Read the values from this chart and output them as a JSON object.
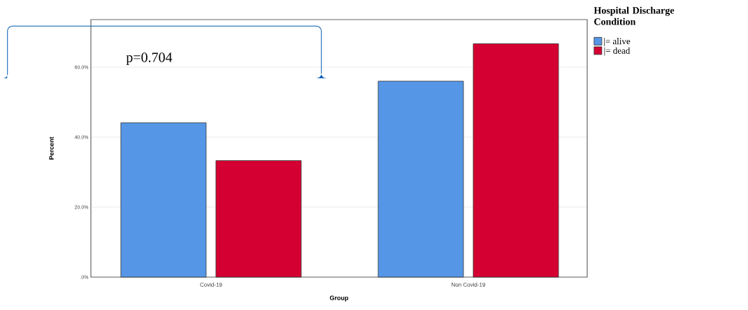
{
  "chart_data": {
    "type": "bar",
    "xlabel": "Group",
    "ylabel": "Percent",
    "legend_title": "Hospital Discharge Condition",
    "categories": [
      "Covid-19",
      "Non Covid-19"
    ],
    "series": [
      {
        "name": "|= alive",
        "color": "#5596e6",
        "values": [
          44.1,
          56.0
        ]
      },
      {
        "name": "|= dead",
        "color": "#d50032",
        "values": [
          33.3,
          66.7
        ]
      }
    ],
    "ylim": [
      0,
      73.6
    ],
    "yticks": [
      {
        "value": 0,
        "label": ".0%"
      },
      {
        "value": 20,
        "label": "20.0%"
      },
      {
        "value": 40,
        "label": "40.0%"
      },
      {
        "value": 60,
        "label": "60.0%"
      }
    ],
    "grid": "y",
    "legend": "top right",
    "annotations": [
      "p=0.704"
    ]
  }
}
